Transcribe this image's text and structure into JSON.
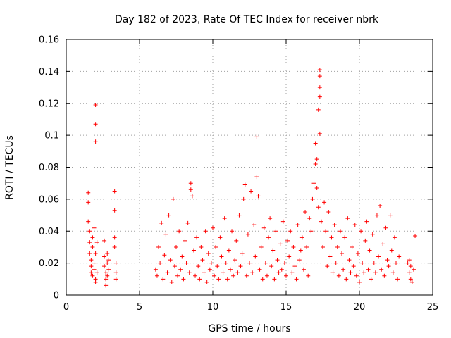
{
  "chart_data": {
    "type": "scatter",
    "title": "Day 182 of 2023, Rate Of TEC Index for receiver nbrk",
    "xlabel": "GPS time / hours",
    "ylabel": "ROTI / TECUs",
    "xlim": [
      0,
      25
    ],
    "ylim": [
      0,
      0.16
    ],
    "xticks": [
      "0",
      "5",
      "10",
      "15",
      "20",
      "25"
    ],
    "yticks": [
      "0",
      "0.02",
      "0.04",
      "0.06",
      "0.08",
      "0.1",
      "0.12",
      "0.14",
      "0.16"
    ],
    "grid": true,
    "marker": "plus",
    "color": "#ff0000",
    "points": [
      [
        1.5,
        0.064
      ],
      [
        1.5,
        0.058
      ],
      [
        1.5,
        0.046
      ],
      [
        1.6,
        0.04
      ],
      [
        1.6,
        0.033
      ],
      [
        1.6,
        0.026
      ],
      [
        1.7,
        0.022
      ],
      [
        1.7,
        0.018
      ],
      [
        1.7,
        0.014
      ],
      [
        1.8,
        0.012
      ],
      [
        1.8,
        0.03
      ],
      [
        1.8,
        0.036
      ],
      [
        1.9,
        0.042
      ],
      [
        1.9,
        0.02
      ],
      [
        1.9,
        0.016
      ],
      [
        2.0,
        0.01
      ],
      [
        2.0,
        0.026
      ],
      [
        2.0,
        0.008
      ],
      [
        2.1,
        0.033
      ],
      [
        2.1,
        0.014
      ],
      [
        2.0,
        0.119
      ],
      [
        2.0,
        0.107
      ],
      [
        2.0,
        0.096
      ],
      [
        2.6,
        0.034
      ],
      [
        2.6,
        0.024
      ],
      [
        2.6,
        0.018
      ],
      [
        2.7,
        0.014
      ],
      [
        2.7,
        0.01
      ],
      [
        2.7,
        0.006
      ],
      [
        2.8,
        0.02
      ],
      [
        2.8,
        0.012
      ],
      [
        2.8,
        0.026
      ],
      [
        2.9,
        0.016
      ],
      [
        2.9,
        0.022
      ],
      [
        3.3,
        0.065
      ],
      [
        3.3,
        0.053
      ],
      [
        3.3,
        0.036
      ],
      [
        3.3,
        0.03
      ],
      [
        3.4,
        0.02
      ],
      [
        3.4,
        0.014
      ],
      [
        3.4,
        0.01
      ],
      [
        6.1,
        0.016
      ],
      [
        6.2,
        0.012
      ],
      [
        6.3,
        0.03
      ],
      [
        6.4,
        0.02
      ],
      [
        6.5,
        0.045
      ],
      [
        6.6,
        0.01
      ],
      [
        6.7,
        0.025
      ],
      [
        6.8,
        0.038
      ],
      [
        6.9,
        0.014
      ],
      [
        7.0,
        0.05
      ],
      [
        7.1,
        0.022
      ],
      [
        7.2,
        0.008
      ],
      [
        7.3,
        0.06
      ],
      [
        7.4,
        0.018
      ],
      [
        7.5,
        0.03
      ],
      [
        7.6,
        0.012
      ],
      [
        7.7,
        0.04
      ],
      [
        7.8,
        0.016
      ],
      [
        7.9,
        0.024
      ],
      [
        8.0,
        0.01
      ],
      [
        8.1,
        0.034
      ],
      [
        8.2,
        0.02
      ],
      [
        8.3,
        0.045
      ],
      [
        8.4,
        0.014
      ],
      [
        8.5,
        0.07
      ],
      [
        8.5,
        0.066
      ],
      [
        8.6,
        0.062
      ],
      [
        8.7,
        0.028
      ],
      [
        8.8,
        0.012
      ],
      [
        8.9,
        0.036
      ],
      [
        9.0,
        0.018
      ],
      [
        9.1,
        0.01
      ],
      [
        9.2,
        0.03
      ],
      [
        9.3,
        0.022
      ],
      [
        9.4,
        0.014
      ],
      [
        9.5,
        0.04
      ],
      [
        9.6,
        0.008
      ],
      [
        9.7,
        0.026
      ],
      [
        9.8,
        0.016
      ],
      [
        9.9,
        0.02
      ],
      [
        10.0,
        0.042
      ],
      [
        10.1,
        0.012
      ],
      [
        10.2,
        0.03
      ],
      [
        10.3,
        0.018
      ],
      [
        10.4,
        0.01
      ],
      [
        10.5,
        0.036
      ],
      [
        10.6,
        0.024
      ],
      [
        10.7,
        0.014
      ],
      [
        10.8,
        0.048
      ],
      [
        10.9,
        0.02
      ],
      [
        11.0,
        0.01
      ],
      [
        11.1,
        0.028
      ],
      [
        11.2,
        0.016
      ],
      [
        11.3,
        0.04
      ],
      [
        11.4,
        0.012
      ],
      [
        11.5,
        0.022
      ],
      [
        11.6,
        0.034
      ],
      [
        11.7,
        0.014
      ],
      [
        11.8,
        0.05
      ],
      [
        11.9,
        0.018
      ],
      [
        12.0,
        0.026
      ],
      [
        12.1,
        0.06
      ],
      [
        12.2,
        0.069
      ],
      [
        12.3,
        0.012
      ],
      [
        12.4,
        0.038
      ],
      [
        12.5,
        0.02
      ],
      [
        12.6,
        0.065
      ],
      [
        12.7,
        0.014
      ],
      [
        12.8,
        0.044
      ],
      [
        12.9,
        0.024
      ],
      [
        13.0,
        0.099
      ],
      [
        13.0,
        0.074
      ],
      [
        13.1,
        0.062
      ],
      [
        13.2,
        0.016
      ],
      [
        13.3,
        0.03
      ],
      [
        13.4,
        0.01
      ],
      [
        13.5,
        0.042
      ],
      [
        13.6,
        0.02
      ],
      [
        13.7,
        0.012
      ],
      [
        13.8,
        0.036
      ],
      [
        13.9,
        0.048
      ],
      [
        14.0,
        0.018
      ],
      [
        14.1,
        0.028
      ],
      [
        14.2,
        0.01
      ],
      [
        14.3,
        0.04
      ],
      [
        14.4,
        0.022
      ],
      [
        14.5,
        0.014
      ],
      [
        14.6,
        0.032
      ],
      [
        14.7,
        0.016
      ],
      [
        14.8,
        0.046
      ],
      [
        14.9,
        0.02
      ],
      [
        15.0,
        0.012
      ],
      [
        15.1,
        0.034
      ],
      [
        15.2,
        0.024
      ],
      [
        15.3,
        0.04
      ],
      [
        15.4,
        0.014
      ],
      [
        15.5,
        0.03
      ],
      [
        15.6,
        0.018
      ],
      [
        15.7,
        0.01
      ],
      [
        15.8,
        0.044
      ],
      [
        15.9,
        0.022
      ],
      [
        16.0,
        0.028
      ],
      [
        16.1,
        0.036
      ],
      [
        16.2,
        0.016
      ],
      [
        16.3,
        0.052
      ],
      [
        16.4,
        0.03
      ],
      [
        16.5,
        0.012
      ],
      [
        16.6,
        0.048
      ],
      [
        16.7,
        0.04
      ],
      [
        16.8,
        0.06
      ],
      [
        16.9,
        0.07
      ],
      [
        17.0,
        0.095
      ],
      [
        17.0,
        0.082
      ],
      [
        17.1,
        0.085
      ],
      [
        17.1,
        0.067
      ],
      [
        17.2,
        0.055
      ],
      [
        17.3,
        0.141
      ],
      [
        17.3,
        0.137
      ],
      [
        17.3,
        0.13
      ],
      [
        17.3,
        0.124
      ],
      [
        17.2,
        0.116
      ],
      [
        17.3,
        0.101
      ],
      [
        17.4,
        0.046
      ],
      [
        17.5,
        0.03
      ],
      [
        17.6,
        0.058
      ],
      [
        17.7,
        0.04
      ],
      [
        17.8,
        0.018
      ],
      [
        17.9,
        0.052
      ],
      [
        18.0,
        0.024
      ],
      [
        18.1,
        0.036
      ],
      [
        18.2,
        0.014
      ],
      [
        18.3,
        0.044
      ],
      [
        18.4,
        0.02
      ],
      [
        18.5,
        0.03
      ],
      [
        18.6,
        0.012
      ],
      [
        18.7,
        0.04
      ],
      [
        18.8,
        0.026
      ],
      [
        18.9,
        0.016
      ],
      [
        19.0,
        0.036
      ],
      [
        19.1,
        0.01
      ],
      [
        19.2,
        0.048
      ],
      [
        19.3,
        0.022
      ],
      [
        19.4,
        0.014
      ],
      [
        19.5,
        0.03
      ],
      [
        19.6,
        0.018
      ],
      [
        19.7,
        0.044
      ],
      [
        19.8,
        0.012
      ],
      [
        19.9,
        0.026
      ],
      [
        20.0,
        0.008
      ],
      [
        20.1,
        0.04
      ],
      [
        20.2,
        0.02
      ],
      [
        20.3,
        0.014
      ],
      [
        20.4,
        0.034
      ],
      [
        20.5,
        0.046
      ],
      [
        20.6,
        0.016
      ],
      [
        20.7,
        0.028
      ],
      [
        20.8,
        0.01
      ],
      [
        20.9,
        0.038
      ],
      [
        21.0,
        0.02
      ],
      [
        21.1,
        0.014
      ],
      [
        21.2,
        0.05
      ],
      [
        21.3,
        0.024
      ],
      [
        21.4,
        0.056
      ],
      [
        21.5,
        0.016
      ],
      [
        21.6,
        0.032
      ],
      [
        21.7,
        0.012
      ],
      [
        21.8,
        0.042
      ],
      [
        21.9,
        0.022
      ],
      [
        22.0,
        0.018
      ],
      [
        22.1,
        0.05
      ],
      [
        22.2,
        0.028
      ],
      [
        22.3,
        0.014
      ],
      [
        22.4,
        0.036
      ],
      [
        22.5,
        0.02
      ],
      [
        22.6,
        0.01
      ],
      [
        22.7,
        0.024
      ],
      [
        23.3,
        0.02
      ],
      [
        23.4,
        0.014
      ],
      [
        23.5,
        0.01
      ],
      [
        23.6,
        0.008
      ],
      [
        23.7,
        0.016
      ],
      [
        23.8,
        0.037
      ],
      [
        23.4,
        0.022
      ],
      [
        23.5,
        0.018
      ]
    ]
  }
}
